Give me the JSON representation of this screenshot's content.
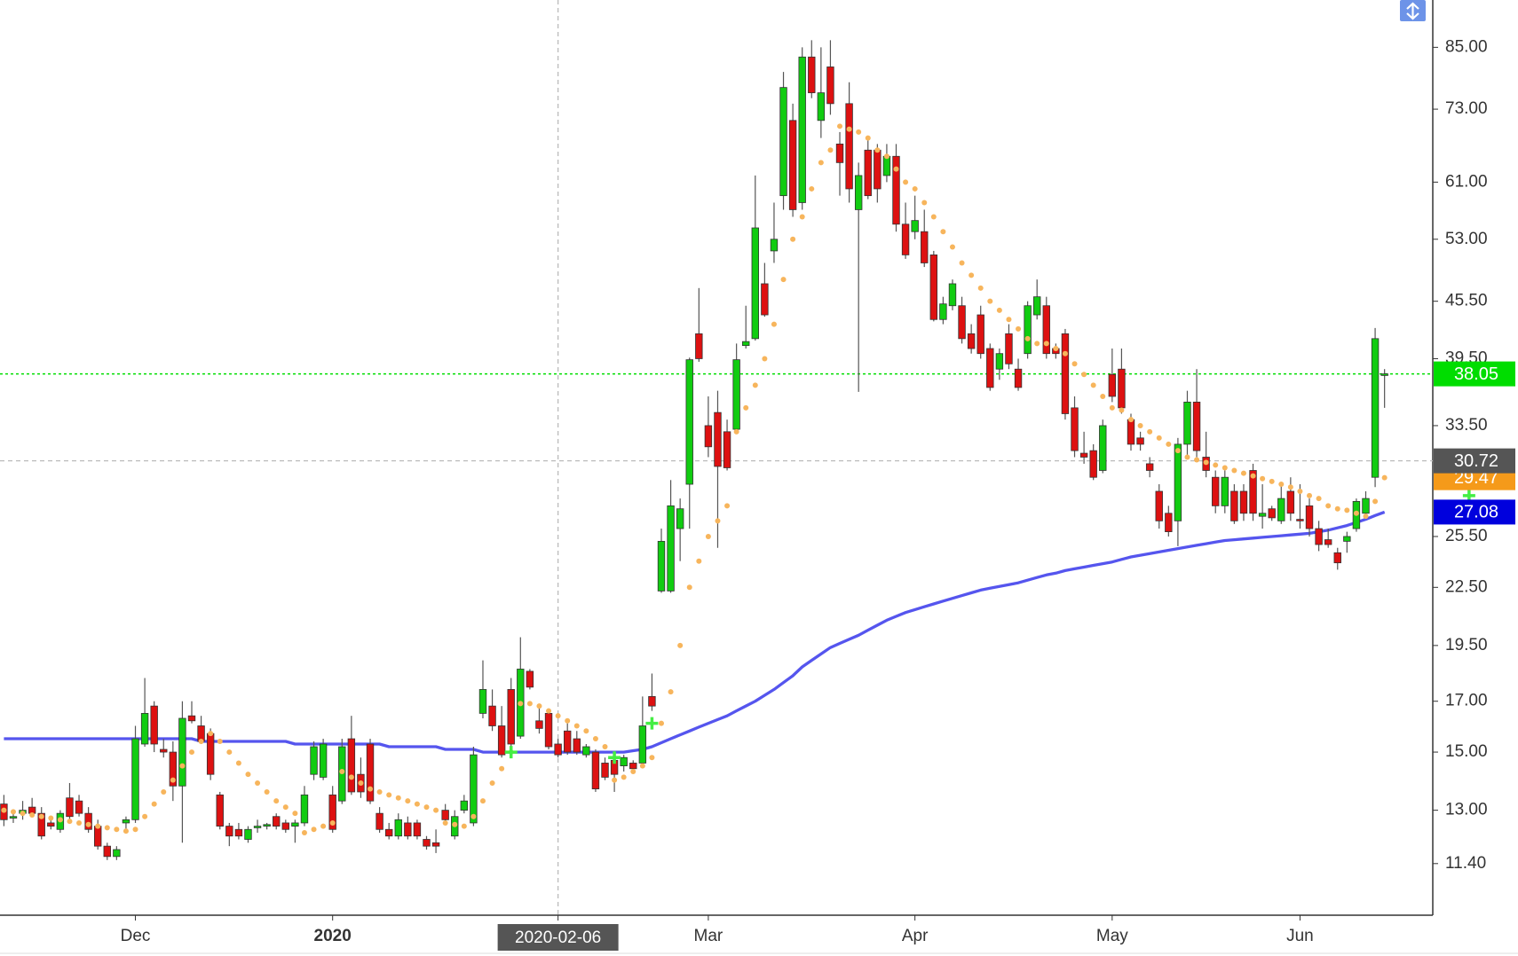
{
  "chart_data": {
    "type": "candlestick",
    "categories": [
      null,
      null,
      null,
      null,
      null,
      null,
      null,
      null,
      null,
      null,
      null,
      null,
      null,
      null,
      "Dec",
      null,
      null,
      null,
      null,
      null,
      null,
      null,
      null,
      null,
      null,
      null,
      null,
      null,
      null,
      null,
      null,
      null,
      null,
      null,
      null,
      "2020",
      null,
      null,
      null,
      null,
      null,
      null,
      null,
      null,
      null,
      null,
      null,
      null,
      null,
      null,
      null,
      null,
      null,
      null,
      null,
      null,
      null,
      null,
      null,
      "2020-02-06",
      null,
      null,
      null,
      null,
      null,
      null,
      null,
      null,
      null,
      null,
      null,
      null,
      null,
      null,
      null,
      "Mar",
      null,
      null,
      null,
      null,
      null,
      null,
      null,
      null,
      null,
      null,
      null,
      null,
      null,
      null,
      null,
      null,
      null,
      null,
      null,
      null,
      null,
      "Apr",
      null,
      null,
      null,
      null,
      null,
      null,
      null,
      null,
      null,
      null,
      null,
      null,
      null,
      null,
      null,
      null,
      null,
      null,
      null,
      null,
      "May",
      null,
      null,
      null,
      null,
      null,
      null,
      null,
      null,
      null,
      null,
      null,
      null,
      null,
      null,
      null,
      null,
      null,
      null,
      null,
      "Jun",
      null,
      null,
      null,
      null,
      null,
      null,
      null,
      null,
      null
    ],
    "open": [
      13.2,
      12.75,
      12.9,
      13.1,
      12.9,
      12.6,
      12.4,
      13.4,
      13.3,
      12.9,
      12.5,
      11.9,
      11.6,
      12.6,
      12.7,
      15.3,
      16.8,
      15.1,
      15.0,
      13.8,
      16.4,
      16.0,
      15.7,
      13.5,
      12.5,
      12.4,
      12.1,
      12.45,
      12.5,
      12.8,
      12.6,
      12.5,
      12.6,
      14.2,
      14.1,
      13.5,
      13.3,
      15.5,
      14.2,
      15.3,
      12.9,
      12.4,
      12.2,
      12.6,
      12.6,
      12.1,
      12.0,
      13.0,
      12.2,
      13.0,
      12.6,
      16.5,
      16.8,
      16.0,
      17.5,
      15.6,
      18.3,
      16.2,
      16.5,
      15.3,
      15.8,
      15.5,
      14.9,
      15.0,
      14.6,
      14.7,
      14.5,
      14.6,
      14.6,
      17.2,
      22.3,
      22.3,
      26.0,
      29.0,
      42.0,
      33.5,
      34.6,
      33.0,
      33.2,
      40.8,
      41.5,
      47.5,
      51.5,
      59.0,
      71.0,
      58.0,
      83.0,
      71.0,
      81.0,
      67.0,
      74.0,
      57.0,
      66.0,
      66.0,
      62.0,
      65.0,
      55.0,
      54.0,
      54.0,
      51.0,
      43.5,
      45.0,
      45.0,
      42.0,
      44.0,
      40.5,
      38.5,
      42.0,
      38.5,
      40.0,
      44.0,
      45.0,
      40.5,
      42.0,
      35.0,
      31.3,
      31.5,
      30.0,
      38.0,
      38.5,
      34.0,
      32.5,
      30.5,
      28.5,
      27.0,
      26.5,
      32.0,
      35.5,
      31.0,
      29.5,
      27.5,
      28.5,
      28.5,
      30.0,
      26.8,
      27.3,
      26.5,
      28.5,
      26.6,
      27.5,
      26.0,
      25.3,
      24.5,
      25.2,
      26.0,
      27.0,
      29.5,
      37.9
    ],
    "high": [
      13.5,
      13.0,
      13.3,
      13.4,
      13.1,
      12.8,
      13.0,
      13.9,
      13.5,
      13.1,
      12.7,
      12.0,
      11.9,
      12.8,
      16.0,
      18.0,
      17.0,
      15.5,
      15.4,
      17.0,
      17.0,
      16.4,
      15.9,
      13.6,
      12.6,
      12.6,
      12.5,
      12.7,
      12.6,
      12.9,
      12.7,
      12.7,
      13.8,
      15.4,
      15.5,
      13.8,
      15.5,
      16.4,
      14.8,
      15.5,
      13.1,
      12.6,
      12.9,
      12.8,
      12.7,
      12.2,
      12.4,
      13.2,
      13.0,
      13.5,
      15.2,
      18.8,
      17.5,
      16.8,
      18.0,
      19.9,
      18.4,
      16.8,
      16.7,
      15.5,
      16.1,
      15.8,
      15.3,
      15.1,
      14.8,
      14.9,
      14.9,
      14.7,
      17.2,
      18.2,
      26.0,
      29.3,
      28.0,
      39.6,
      47.0,
      36.0,
      36.5,
      34.0,
      41.0,
      45.0,
      62.0,
      50.0,
      58.0,
      80.0,
      74.0,
      85.0,
      86.5,
      85.0,
      86.5,
      69.0,
      78.0,
      64.0,
      68.0,
      67.0,
      67.0,
      67.0,
      58.0,
      59.0,
      57.0,
      51.5,
      46.0,
      48.0,
      46.0,
      43.0,
      45.0,
      41.0,
      40.5,
      43.0,
      39.5,
      45.5,
      48.0,
      46.0,
      41.0,
      42.5,
      36.0,
      33.0,
      32.0,
      34.0,
      40.5,
      40.5,
      34.5,
      33.0,
      31.0,
      29.0,
      27.5,
      32.5,
      36.5,
      38.5,
      33.0,
      30.0,
      30.0,
      29.0,
      29.0,
      30.5,
      29.0,
      27.5,
      29.0,
      29.5,
      29.0,
      28.0,
      26.5,
      26.0,
      24.8,
      25.8,
      28.0,
      28.5,
      42.6,
      38.5
    ],
    "low": [
      12.5,
      12.6,
      12.7,
      12.8,
      12.1,
      12.4,
      12.3,
      12.7,
      12.8,
      12.3,
      11.8,
      11.5,
      11.5,
      12.4,
      12.6,
      15.2,
      15.0,
      14.8,
      13.3,
      12.0,
      16.1,
      15.3,
      14.0,
      12.4,
      11.9,
      12.1,
      12.0,
      12.3,
      12.4,
      12.4,
      12.3,
      12.0,
      12.5,
      14.0,
      14.0,
      12.3,
      13.2,
      13.5,
      13.4,
      13.2,
      12.3,
      12.1,
      12.1,
      12.1,
      12.1,
      11.8,
      11.7,
      12.6,
      12.1,
      12.9,
      12.5,
      16.3,
      15.8,
      14.8,
      15.2,
      15.5,
      17.5,
      15.7,
      15.1,
      14.8,
      14.9,
      14.9,
      14.8,
      13.6,
      14.0,
      13.6,
      14.3,
      14.3,
      14.5,
      16.6,
      22.2,
      22.2,
      24.0,
      26.0,
      39.2,
      31.0,
      24.8,
      30.0,
      33.0,
      40.5,
      41.3,
      43.8,
      50.0,
      57.0,
      56.0,
      57.0,
      75.0,
      68.0,
      72.0,
      59.0,
      58.0,
      36.4,
      58.5,
      58.0,
      61.0,
      54.0,
      50.5,
      53.0,
      49.5,
      43.3,
      43.0,
      44.5,
      41.0,
      40.0,
      39.5,
      36.5,
      37.5,
      38.5,
      36.5,
      39.5,
      43.5,
      39.5,
      39.5,
      34.0,
      31.0,
      30.5,
      29.3,
      29.8,
      35.5,
      34.5,
      31.5,
      31.5,
      29.5,
      26.0,
      25.5,
      24.9,
      31.0,
      31.0,
      29.5,
      27.0,
      27.0,
      26.3,
      26.5,
      26.5,
      26.0,
      26.5,
      26.3,
      26.5,
      26.0,
      25.5,
      24.6,
      24.8,
      23.5,
      24.5,
      25.8,
      26.8,
      28.8,
      35.0
    ],
    "close": [
      12.7,
      12.8,
      13.0,
      12.9,
      12.2,
      12.5,
      12.9,
      12.8,
      12.9,
      12.4,
      11.9,
      11.6,
      11.8,
      12.7,
      15.5,
      16.5,
      15.3,
      15.0,
      13.8,
      16.3,
      16.2,
      15.4,
      14.2,
      12.5,
      12.2,
      12.2,
      12.4,
      12.5,
      12.55,
      12.5,
      12.4,
      12.6,
      13.5,
      15.2,
      15.3,
      12.4,
      15.2,
      13.6,
      13.6,
      13.3,
      12.4,
      12.2,
      12.7,
      12.2,
      12.2,
      11.9,
      11.9,
      12.7,
      12.8,
      13.3,
      14.9,
      17.5,
      16.0,
      14.9,
      15.3,
      18.4,
      17.6,
      15.9,
      15.2,
      14.9,
      15.0,
      15.0,
      15.2,
      13.7,
      14.1,
      14.2,
      14.8,
      14.4,
      16.0,
      16.8,
      25.2,
      27.5,
      27.3,
      39.4,
      39.5,
      31.8,
      30.3,
      30.2,
      39.4,
      41.2,
      54.5,
      44.0,
      53.0,
      77.0,
      57.0,
      83.0,
      76.0,
      76.0,
      74.0,
      64.0,
      60.0,
      62.0,
      59.0,
      60.0,
      65.0,
      55.0,
      51.0,
      55.5,
      50.0,
      43.5,
      45.2,
      47.5,
      41.5,
      40.5,
      40.0,
      36.8,
      40.0,
      39.0,
      36.8,
      45.0,
      46.0,
      40.0,
      40.0,
      34.5,
      31.5,
      31.0,
      29.5,
      33.5,
      36.0,
      35.0,
      32.0,
      32.0,
      30.0,
      26.5,
      25.8,
      32.0,
      35.5,
      31.5,
      30.0,
      27.5,
      29.5,
      26.5,
      27.0,
      27.0,
      27.0,
      26.7,
      28.0,
      27.0,
      26.5,
      26.0,
      25.0,
      25.0,
      23.9,
      25.5,
      27.8,
      28.0,
      41.5,
      38.05
    ],
    "up_color": "#11cc11",
    "down_color": "#dd1111",
    "last_color": "#00dd00",
    "ma": {
      "color": "#5555ee",
      "values": [
        15.5,
        15.5,
        15.5,
        15.5,
        15.5,
        15.5,
        15.5,
        15.5,
        15.5,
        15.5,
        15.5,
        15.5,
        15.5,
        15.5,
        15.5,
        15.5,
        15.5,
        15.5,
        15.5,
        15.5,
        15.5,
        15.4,
        15.4,
        15.4,
        15.4,
        15.4,
        15.4,
        15.4,
        15.4,
        15.4,
        15.4,
        15.3,
        15.3,
        15.3,
        15.3,
        15.3,
        15.3,
        15.3,
        15.3,
        15.3,
        15.3,
        15.2,
        15.2,
        15.2,
        15.2,
        15.2,
        15.2,
        15.1,
        15.1,
        15.1,
        15.1,
        15.0,
        15.0,
        15.0,
        15.0,
        15.0,
        15.0,
        15.0,
        15.0,
        15.0,
        15.0,
        15.0,
        15.0,
        15.0,
        15.0,
        15.0,
        15.0,
        15.05,
        15.1,
        15.2,
        15.35,
        15.5,
        15.65,
        15.8,
        15.95,
        16.1,
        16.25,
        16.4,
        16.6,
        16.8,
        17.0,
        17.25,
        17.5,
        17.8,
        18.1,
        18.5,
        18.8,
        19.1,
        19.4,
        19.6,
        19.8,
        20.0,
        20.25,
        20.5,
        20.75,
        20.95,
        21.15,
        21.3,
        21.45,
        21.6,
        21.75,
        21.9,
        22.05,
        22.2,
        22.35,
        22.45,
        22.55,
        22.65,
        22.75,
        22.9,
        23.05,
        23.2,
        23.3,
        23.45,
        23.55,
        23.65,
        23.75,
        23.85,
        23.95,
        24.1,
        24.25,
        24.35,
        24.45,
        24.55,
        24.65,
        24.75,
        24.85,
        24.95,
        25.05,
        25.15,
        25.25,
        25.3,
        25.35,
        25.4,
        25.45,
        25.5,
        25.55,
        25.6,
        25.65,
        25.7,
        25.8,
        25.9,
        26.05,
        26.2,
        26.4,
        26.6,
        26.85,
        27.08
      ]
    },
    "sar": {
      "color": "#f7b55c",
      "tag_color": "#f59a1a",
      "values": [
        13.0,
        12.95,
        12.9,
        12.85,
        12.8,
        12.75,
        12.7,
        12.65,
        12.6,
        12.55,
        12.5,
        12.45,
        12.4,
        12.35,
        12.4,
        12.8,
        13.2,
        13.6,
        14.0,
        14.5,
        15.0,
        15.4,
        15.7,
        15.4,
        15.0,
        14.6,
        14.2,
        13.9,
        13.6,
        13.3,
        13.1,
        12.9,
        12.3,
        12.4,
        12.5,
        12.6,
        14.3,
        14.1,
        13.9,
        13.7,
        13.6,
        13.5,
        13.4,
        13.3,
        13.2,
        13.1,
        13.0,
        12.6,
        12.55,
        12.5,
        12.8,
        13.3,
        13.9,
        14.4,
        15.0,
        16.9,
        16.9,
        16.8,
        16.6,
        16.4,
        16.2,
        16.0,
        15.8,
        15.5,
        15.2,
        14.0,
        14.1,
        14.3,
        14.5,
        14.8,
        16.1,
        17.4,
        19.5,
        22.5,
        24.0,
        25.5,
        26.5,
        27.5,
        33.0,
        35.0,
        37.0,
        39.5,
        43.0,
        48.0,
        53.0,
        56.0,
        60.0,
        64.0,
        66.0,
        70.0,
        69.5,
        69.0,
        68.0,
        66.0,
        65.0,
        63.0,
        61.0,
        60.0,
        58.0,
        56.0,
        54.0,
        52.0,
        50.0,
        48.5,
        47.0,
        45.5,
        44.5,
        43.5,
        42.5,
        41.5,
        41.0,
        41.0,
        40.5,
        40.0,
        39.0,
        38.0,
        37.0,
        36.0,
        35.0,
        34.8,
        34.0,
        33.5,
        33.0,
        32.5,
        32.0,
        31.5,
        31.0,
        30.8,
        30.6,
        30.4,
        30.2,
        30.0,
        29.8,
        29.6,
        29.4,
        29.2,
        29.0,
        28.8,
        28.5,
        28.2,
        28.0,
        27.5,
        27.3,
        27.2,
        27.0,
        26.8,
        27.8,
        29.47
      ]
    },
    "signals": {
      "color": "#44ee44",
      "values": [
        null,
        null,
        null,
        null,
        null,
        null,
        null,
        null,
        null,
        null,
        null,
        null,
        null,
        null,
        null,
        null,
        null,
        null,
        null,
        null,
        null,
        null,
        null,
        null,
        null,
        null,
        null,
        null,
        null,
        null,
        null,
        null,
        null,
        null,
        null,
        null,
        null,
        null,
        null,
        null,
        null,
        null,
        null,
        null,
        null,
        null,
        null,
        null,
        null,
        null,
        null,
        null,
        null,
        null,
        15.0,
        null,
        null,
        null,
        null,
        null,
        null,
        null,
        null,
        null,
        null,
        14.8,
        null,
        null,
        null,
        16.1,
        null,
        null,
        null,
        null,
        null,
        null,
        null,
        null,
        null,
        null,
        null,
        null,
        null,
        null,
        null,
        null,
        null,
        null,
        null,
        null,
        null,
        null,
        null,
        null,
        null,
        null,
        null,
        null,
        null,
        null,
        null,
        null,
        null,
        null,
        null,
        null,
        null,
        null,
        null,
        null,
        null,
        null,
        null,
        null,
        null,
        null,
        null,
        null,
        null,
        null,
        null,
        null,
        null,
        null,
        null,
        null,
        null,
        null,
        null,
        null,
        null,
        null,
        null,
        null,
        null,
        null,
        null,
        null,
        null,
        null,
        null,
        null,
        null,
        null,
        null,
        null,
        null,
        null,
        null,
        null,
        null,
        null,
        null,
        null,
        null,
        null,
        28.2,
        null
      ]
    },
    "crosshair": {
      "x": "2020-02-06",
      "y": 30.72
    },
    "log": true,
    "ylim": [
      10.04,
      95.5
    ],
    "yticks": [
      {
        "value": 85,
        "label": "85.00"
      },
      {
        "value": 73,
        "label": "73.00"
      },
      {
        "value": 61,
        "label": "61.00"
      },
      {
        "value": 53,
        "label": "53.00"
      },
      {
        "value": 45.5,
        "label": "45.50"
      },
      {
        "value": 39.5,
        "label": "39.50"
      },
      {
        "value": 33.5,
        "label": "33.50"
      },
      {
        "value": 25.5,
        "label": "25.50"
      },
      {
        "value": 22.5,
        "label": "22.50"
      },
      {
        "value": 19.5,
        "label": "19.50"
      },
      {
        "value": 17,
        "label": "17.00"
      },
      {
        "value": 15,
        "label": "15.00"
      },
      {
        "value": 13,
        "label": "13.00"
      },
      {
        "value": 11.4,
        "label": "11.40"
      }
    ]
  }
}
